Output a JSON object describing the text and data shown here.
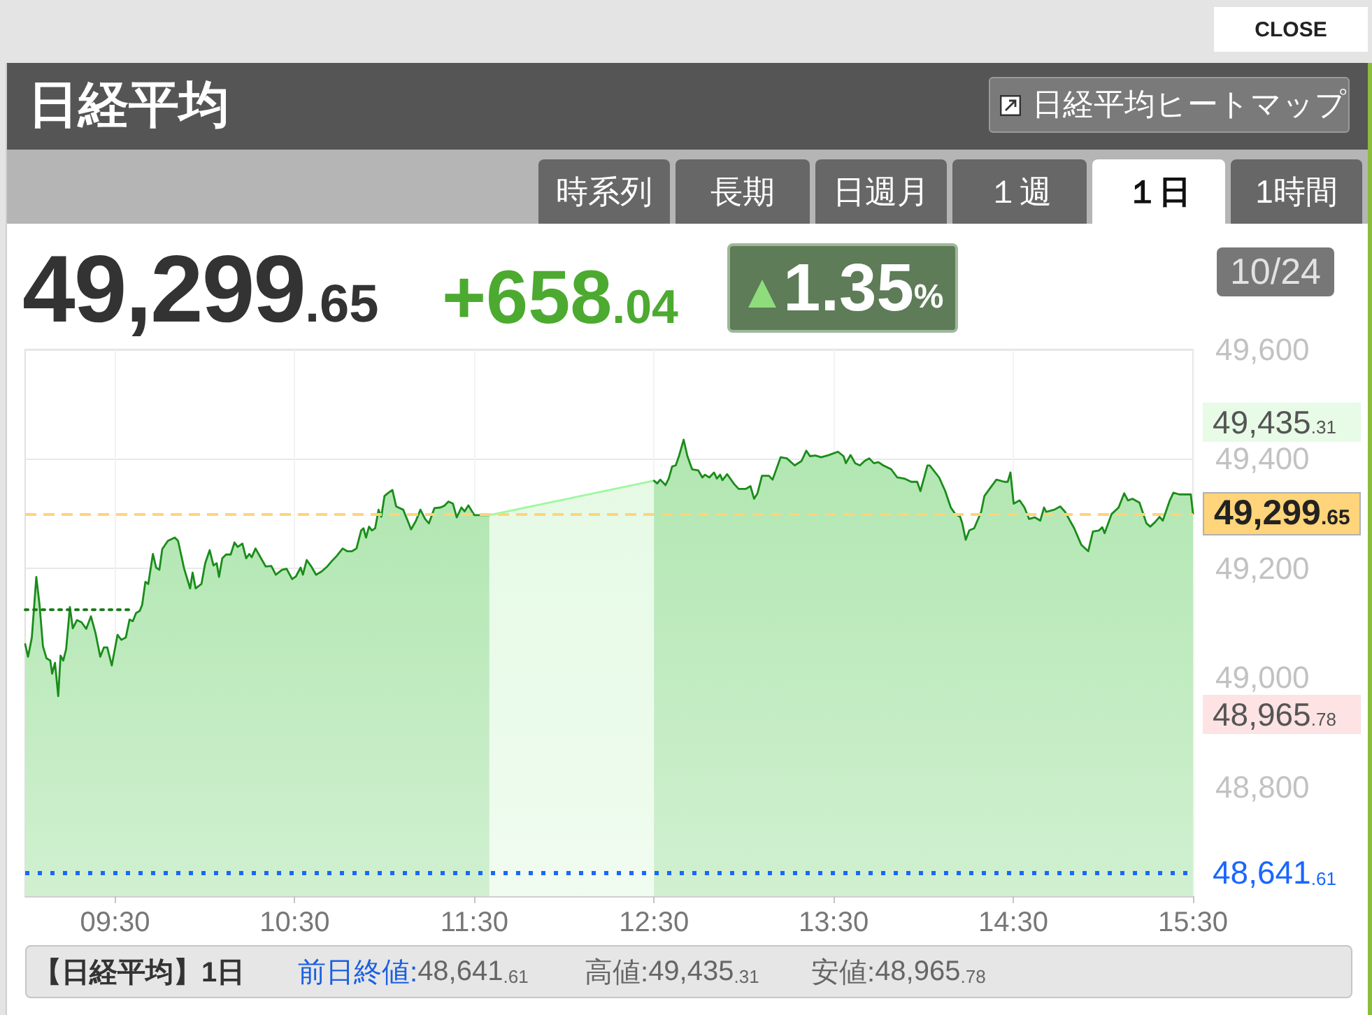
{
  "chart_data": {
    "type": "area",
    "title": "日経平均",
    "xlim": [
      9.0,
      15.5
    ],
    "xticks": [
      {
        "value": 9.5,
        "label": "09:30"
      },
      {
        "value": 10.5,
        "label": "10:30"
      },
      {
        "value": 11.5,
        "label": "11:30"
      },
      {
        "value": 12.5,
        "label": "12:30"
      },
      {
        "value": 13.5,
        "label": "13:30"
      },
      {
        "value": 14.5,
        "label": "14:30"
      },
      {
        "value": 15.5,
        "label": "15:30"
      }
    ],
    "ylim": [
      48600,
      49600
    ],
    "yticks": [
      {
        "value": 49600,
        "label": "49,600"
      },
      {
        "value": 49400,
        "label": "49,400"
      },
      {
        "value": 49200,
        "label": "49,200"
      },
      {
        "value": 49000,
        "label": "49,000"
      },
      {
        "value": 48800,
        "label": "48,800"
      }
    ],
    "grid": true,
    "series": [
      {
        "color": "#1a8c1a",
        "x": [
          9.0,
          9.016,
          9.037,
          9.062,
          9.08,
          9.099,
          9.119,
          9.14,
          9.15,
          9.166,
          9.184,
          9.197,
          9.212,
          9.228,
          9.249,
          9.265,
          9.288,
          9.314,
          9.34,
          9.366,
          9.391,
          9.418,
          9.438,
          9.457,
          9.482,
          9.514,
          9.535,
          9.56,
          9.581,
          9.599,
          9.617,
          9.638,
          9.651,
          9.669,
          9.685,
          9.711,
          9.729,
          9.747,
          9.763,
          9.794,
          9.833,
          9.851,
          9.885,
          9.918,
          9.932,
          9.949,
          9.981,
          10.002,
          10.027,
          10.048,
          10.066,
          10.079,
          10.097,
          10.118,
          10.144,
          10.165,
          10.183,
          10.209,
          10.23,
          10.247,
          10.261,
          10.282,
          10.313,
          10.339,
          10.37,
          10.395,
          10.43,
          10.455,
          10.486,
          10.507,
          10.533,
          10.546,
          10.567,
          10.593,
          10.619,
          10.65,
          10.681,
          10.707,
          10.733,
          10.767,
          10.792,
          10.819,
          10.844,
          10.87,
          10.883,
          10.897,
          10.914,
          10.93,
          10.948,
          10.967,
          10.982,
          11.0,
          11.018,
          11.044,
          11.065,
          11.104,
          11.13,
          11.148,
          11.174,
          11.2,
          11.226,
          11.247,
          11.278,
          11.311,
          11.332,
          11.356,
          11.381,
          11.402,
          11.428,
          11.446,
          11.467,
          11.5,
          11.584
        ],
        "values": [
          49061,
          49038,
          49073,
          49184,
          49133,
          49057,
          49035,
          49031,
          49007,
          49027,
          48966,
          49040,
          49031,
          49052,
          49129,
          49090,
          49105,
          49101,
          49089,
          49112,
          49082,
          49038,
          49055,
          49055,
          49022,
          49078,
          49069,
          49073,
          49106,
          49103,
          49118,
          49122,
          49133,
          49175,
          49171,
          49226,
          49201,
          49197,
          49235,
          49250,
          49256,
          49250,
          49199,
          49163,
          49192,
          49163,
          49171,
          49209,
          49233,
          49205,
          49209,
          49184,
          49218,
          49225,
          49225,
          49247,
          49239,
          49245,
          49218,
          49226,
          49220,
          49236,
          49218,
          49203,
          49204,
          49188,
          49197,
          49199,
          49180,
          49185,
          49201,
          49188,
          49215,
          49203,
          49188,
          49194,
          49203,
          49213,
          49222,
          49236,
          49231,
          49231,
          49236,
          49269,
          49273,
          49256,
          49276,
          49269,
          49273,
          49307,
          49294,
          49332,
          49337,
          49343,
          49313,
          49307,
          49286,
          49271,
          49286,
          49307,
          49290,
          49282,
          49310,
          49311,
          49314,
          49322,
          49318,
          49293,
          49311,
          49304,
          49315,
          49297,
          49297
        ]
      },
      {
        "color": "#9ef89e",
        "x": [
          11.584,
          12.5
        ],
        "values": [
          49297,
          49360
        ]
      },
      {
        "color": "#1a8c1a",
        "x": [
          12.5,
          12.518,
          12.535,
          12.564,
          12.582,
          12.601,
          12.621,
          12.64,
          12.665,
          12.686,
          12.712,
          12.746,
          12.769,
          12.784,
          12.808,
          12.834,
          12.85,
          12.868,
          12.881,
          12.907,
          12.946,
          12.971,
          13.01,
          13.037,
          13.057,
          13.076,
          13.101,
          13.14,
          13.16,
          13.205,
          13.239,
          13.283,
          13.321,
          13.348,
          13.368,
          13.399,
          13.43,
          13.465,
          13.49,
          13.524,
          13.555,
          13.568,
          13.594,
          13.62,
          13.646,
          13.672,
          13.698,
          13.724,
          13.749,
          13.776,
          13.82,
          13.854,
          13.893,
          13.932,
          13.965,
          13.983,
          14.022,
          14.035,
          14.087,
          14.121,
          14.152,
          14.177,
          14.204,
          14.216,
          14.235,
          14.255,
          14.282,
          14.321,
          14.339,
          14.372,
          14.406,
          14.45,
          14.469,
          14.484,
          14.502,
          14.535,
          14.562,
          14.588,
          14.619,
          14.65,
          14.671,
          14.683,
          14.728,
          14.761,
          14.788,
          14.839,
          14.878,
          14.904,
          14.917,
          14.943,
          14.977,
          14.995,
          15.008,
          15.047,
          15.086,
          15.117,
          15.138,
          15.163,
          15.202,
          15.241,
          15.262,
          15.288,
          15.314,
          15.332,
          15.371,
          15.391,
          15.423,
          15.488,
          15.5
        ],
        "values": [
          49360,
          49355,
          49362,
          49352,
          49364,
          49386,
          49388,
          49406,
          49435,
          49405,
          49381,
          49379,
          49366,
          49371,
          49366,
          49375,
          49364,
          49371,
          49361,
          49372,
          49354,
          49345,
          49345,
          49350,
          49327,
          49337,
          49369,
          49369,
          49362,
          49403,
          49401,
          49388,
          49396,
          49415,
          49405,
          49406,
          49403,
          49406,
          49409,
          49413,
          49405,
          49392,
          49407,
          49392,
          49388,
          49396,
          49401,
          49392,
          49394,
          49388,
          49381,
          49366,
          49364,
          49358,
          49358,
          49341,
          49388,
          49388,
          49366,
          49341,
          49311,
          49299,
          49294,
          49282,
          49252,
          49269,
          49273,
          49303,
          49332,
          49347,
          49362,
          49358,
          49358,
          49375,
          49318,
          49324,
          49311,
          49290,
          49293,
          49287,
          49311,
          49303,
          49307,
          49313,
          49303,
          49273,
          49243,
          49235,
          49231,
          49267,
          49269,
          49275,
          49264,
          49299,
          49311,
          49337,
          49324,
          49327,
          49320,
          49282,
          49276,
          49284,
          49294,
          49287,
          49324,
          49338,
          49335,
          49335,
          49300
        ]
      },
      {
        "type": "line",
        "line_style": "dotted",
        "color": "#1a7a1a",
        "x": [
          9.0,
          9.6
        ],
        "values": [
          49124,
          49124
        ]
      }
    ],
    "ref_lines": [
      {
        "axis": "y",
        "value": 49299.65,
        "label": "49,299.65",
        "color": "#ffd47a",
        "line_style": "dashed"
      },
      {
        "axis": "y",
        "value": 48641.61,
        "label": "48,641.61",
        "color": "#1a66ff",
        "line_style": "dotted"
      }
    ],
    "annotations": [
      "CLOSE",
      "日経平均ヒートマップ",
      "時系列",
      "長期",
      "日週月",
      "１週",
      "１日",
      "1時間",
      "49,299.65",
      "+658.04",
      "1.35%",
      "10/24",
      "49,435.31",
      "48,965.78",
      "【日経平均】1日",
      "前日終値:48,641.61",
      "高値:49,435.31",
      "安値:48,965.78"
    ]
  }
}
